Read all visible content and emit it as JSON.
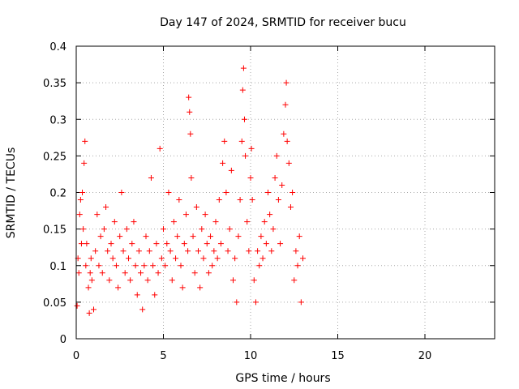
{
  "chart_data": {
    "type": "scatter",
    "title": "Day 147 of 2024, SRMTID for receiver bucu",
    "xlabel": "GPS time / hours",
    "ylabel": "SRMTID / TECUs",
    "xlim": [
      0,
      24
    ],
    "ylim": [
      0,
      0.4
    ],
    "x_ticks": [
      0,
      5,
      10,
      15,
      20
    ],
    "y_ticks": [
      0,
      0.05,
      0.1,
      0.15,
      0.2,
      0.25,
      0.3,
      0.35,
      0.4
    ],
    "y_tick_labels": [
      "0",
      "0.05",
      "0.1",
      "0.15",
      "0.2",
      "0.25",
      "0.3",
      "0.35",
      "0.4"
    ],
    "x_tick_labels": [
      "0",
      "5",
      "10",
      "15",
      "20"
    ],
    "grid": true,
    "marker": "plus",
    "color": "#ff0000",
    "data_range_hours": [
      0,
      13
    ],
    "series": [
      {
        "values": [
          [
            0.05,
            0.045
          ],
          [
            0.1,
            0.11
          ],
          [
            0.15,
            0.09
          ],
          [
            0.2,
            0.17
          ],
          [
            0.25,
            0.19
          ],
          [
            0.3,
            0.13
          ],
          [
            0.35,
            0.2
          ],
          [
            0.4,
            0.15
          ],
          [
            0.45,
            0.24
          ],
          [
            0.5,
            0.27
          ],
          [
            0.55,
            0.1
          ],
          [
            0.6,
            0.13
          ],
          [
            0.7,
            0.07
          ],
          [
            0.75,
            0.035
          ],
          [
            0.8,
            0.09
          ],
          [
            0.85,
            0.11
          ],
          [
            0.9,
            0.08
          ],
          [
            1.0,
            0.04
          ],
          [
            1.1,
            0.12
          ],
          [
            1.2,
            0.17
          ],
          [
            1.3,
            0.1
          ],
          [
            1.4,
            0.14
          ],
          [
            1.5,
            0.09
          ],
          [
            1.6,
            0.15
          ],
          [
            1.7,
            0.18
          ],
          [
            1.8,
            0.12
          ],
          [
            1.9,
            0.08
          ],
          [
            2.0,
            0.13
          ],
          [
            2.1,
            0.11
          ],
          [
            2.2,
            0.16
          ],
          [
            2.3,
            0.1
          ],
          [
            2.4,
            0.07
          ],
          [
            2.5,
            0.14
          ],
          [
            2.6,
            0.2
          ],
          [
            2.7,
            0.12
          ],
          [
            2.8,
            0.09
          ],
          [
            2.9,
            0.15
          ],
          [
            3.0,
            0.11
          ],
          [
            3.1,
            0.08
          ],
          [
            3.2,
            0.13
          ],
          [
            3.3,
            0.16
          ],
          [
            3.4,
            0.1
          ],
          [
            3.5,
            0.06
          ],
          [
            3.6,
            0.12
          ],
          [
            3.7,
            0.09
          ],
          [
            3.8,
            0.04
          ],
          [
            3.9,
            0.1
          ],
          [
            4.0,
            0.14
          ],
          [
            4.1,
            0.08
          ],
          [
            4.2,
            0.12
          ],
          [
            4.3,
            0.22
          ],
          [
            4.4,
            0.1
          ],
          [
            4.5,
            0.06
          ],
          [
            4.6,
            0.13
          ],
          [
            4.7,
            0.09
          ],
          [
            4.8,
            0.26
          ],
          [
            4.9,
            0.11
          ],
          [
            5.0,
            0.15
          ],
          [
            5.1,
            0.1
          ],
          [
            5.2,
            0.13
          ],
          [
            5.3,
            0.2
          ],
          [
            5.4,
            0.12
          ],
          [
            5.5,
            0.08
          ],
          [
            5.6,
            0.16
          ],
          [
            5.7,
            0.11
          ],
          [
            5.8,
            0.14
          ],
          [
            5.9,
            0.19
          ],
          [
            6.0,
            0.1
          ],
          [
            6.1,
            0.07
          ],
          [
            6.2,
            0.13
          ],
          [
            6.3,
            0.17
          ],
          [
            6.4,
            0.12
          ],
          [
            6.45,
            0.33
          ],
          [
            6.5,
            0.31
          ],
          [
            6.55,
            0.28
          ],
          [
            6.6,
            0.22
          ],
          [
            6.7,
            0.14
          ],
          [
            6.8,
            0.09
          ],
          [
            6.9,
            0.18
          ],
          [
            7.0,
            0.12
          ],
          [
            7.1,
            0.07
          ],
          [
            7.2,
            0.15
          ],
          [
            7.3,
            0.11
          ],
          [
            7.4,
            0.17
          ],
          [
            7.5,
            0.13
          ],
          [
            7.6,
            0.09
          ],
          [
            7.7,
            0.14
          ],
          [
            7.8,
            0.1
          ],
          [
            7.9,
            0.12
          ],
          [
            8.0,
            0.16
          ],
          [
            8.1,
            0.11
          ],
          [
            8.2,
            0.19
          ],
          [
            8.3,
            0.13
          ],
          [
            8.4,
            0.24
          ],
          [
            8.5,
            0.27
          ],
          [
            8.6,
            0.2
          ],
          [
            8.7,
            0.12
          ],
          [
            8.8,
            0.15
          ],
          [
            8.9,
            0.23
          ],
          [
            9.0,
            0.08
          ],
          [
            9.1,
            0.11
          ],
          [
            9.2,
            0.05
          ],
          [
            9.3,
            0.14
          ],
          [
            9.4,
            0.19
          ],
          [
            9.5,
            0.27
          ],
          [
            9.55,
            0.34
          ],
          [
            9.6,
            0.37
          ],
          [
            9.65,
            0.3
          ],
          [
            9.7,
            0.25
          ],
          [
            9.8,
            0.16
          ],
          [
            9.9,
            0.12
          ],
          [
            10.0,
            0.22
          ],
          [
            10.05,
            0.26
          ],
          [
            10.1,
            0.19
          ],
          [
            10.2,
            0.08
          ],
          [
            10.3,
            0.05
          ],
          [
            10.4,
            0.12
          ],
          [
            10.5,
            0.1
          ],
          [
            10.6,
            0.14
          ],
          [
            10.7,
            0.11
          ],
          [
            10.8,
            0.16
          ],
          [
            10.9,
            0.13
          ],
          [
            11.0,
            0.2
          ],
          [
            11.1,
            0.17
          ],
          [
            11.2,
            0.12
          ],
          [
            11.3,
            0.15
          ],
          [
            11.4,
            0.22
          ],
          [
            11.5,
            0.25
          ],
          [
            11.6,
            0.19
          ],
          [
            11.7,
            0.13
          ],
          [
            11.8,
            0.21
          ],
          [
            11.9,
            0.28
          ],
          [
            12.0,
            0.32
          ],
          [
            12.05,
            0.35
          ],
          [
            12.1,
            0.27
          ],
          [
            12.2,
            0.24
          ],
          [
            12.3,
            0.18
          ],
          [
            12.4,
            0.2
          ],
          [
            12.5,
            0.08
          ],
          [
            12.6,
            0.12
          ],
          [
            12.7,
            0.1
          ],
          [
            12.8,
            0.14
          ],
          [
            12.9,
            0.05
          ],
          [
            13.0,
            0.11
          ]
        ]
      }
    ]
  }
}
